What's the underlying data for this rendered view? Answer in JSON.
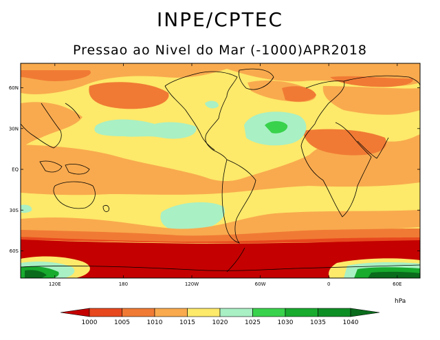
{
  "header": {
    "title": "INPE/CPTEC",
    "subtitle": "Pressao ao Nivel do Mar (-1000)APR2018"
  },
  "map": {
    "lat_ticks": [
      {
        "value": 60,
        "label": "60N"
      },
      {
        "value": 30,
        "label": "30N"
      },
      {
        "value": 0,
        "label": "EQ"
      },
      {
        "value": -30,
        "label": "30S"
      },
      {
        "value": -60,
        "label": "60S"
      }
    ],
    "lon_ticks": [
      {
        "value": 120,
        "label": "120E"
      },
      {
        "value": 180,
        "label": "180"
      },
      {
        "value": 240,
        "label": "120W"
      },
      {
        "value": 300,
        "label": "60W"
      },
      {
        "value": 360,
        "label": "0"
      },
      {
        "value": 420,
        "label": "60E"
      }
    ],
    "extent": {
      "lon_min": 90,
      "lon_max": 440,
      "lat_min": -80,
      "lat_max": 78
    }
  },
  "legend": {
    "units": "hPa",
    "levels": [
      "1000",
      "1005",
      "1010",
      "1015",
      "1020",
      "1025",
      "1030",
      "1035",
      "1040"
    ],
    "colors": [
      "#c40000",
      "#e8481e",
      "#f07a34",
      "#f9aa4e",
      "#fde96a",
      "#a9f0c4",
      "#39d24c",
      "#18ab2e",
      "#0e8f25",
      "#0a6b1c"
    ]
  }
}
